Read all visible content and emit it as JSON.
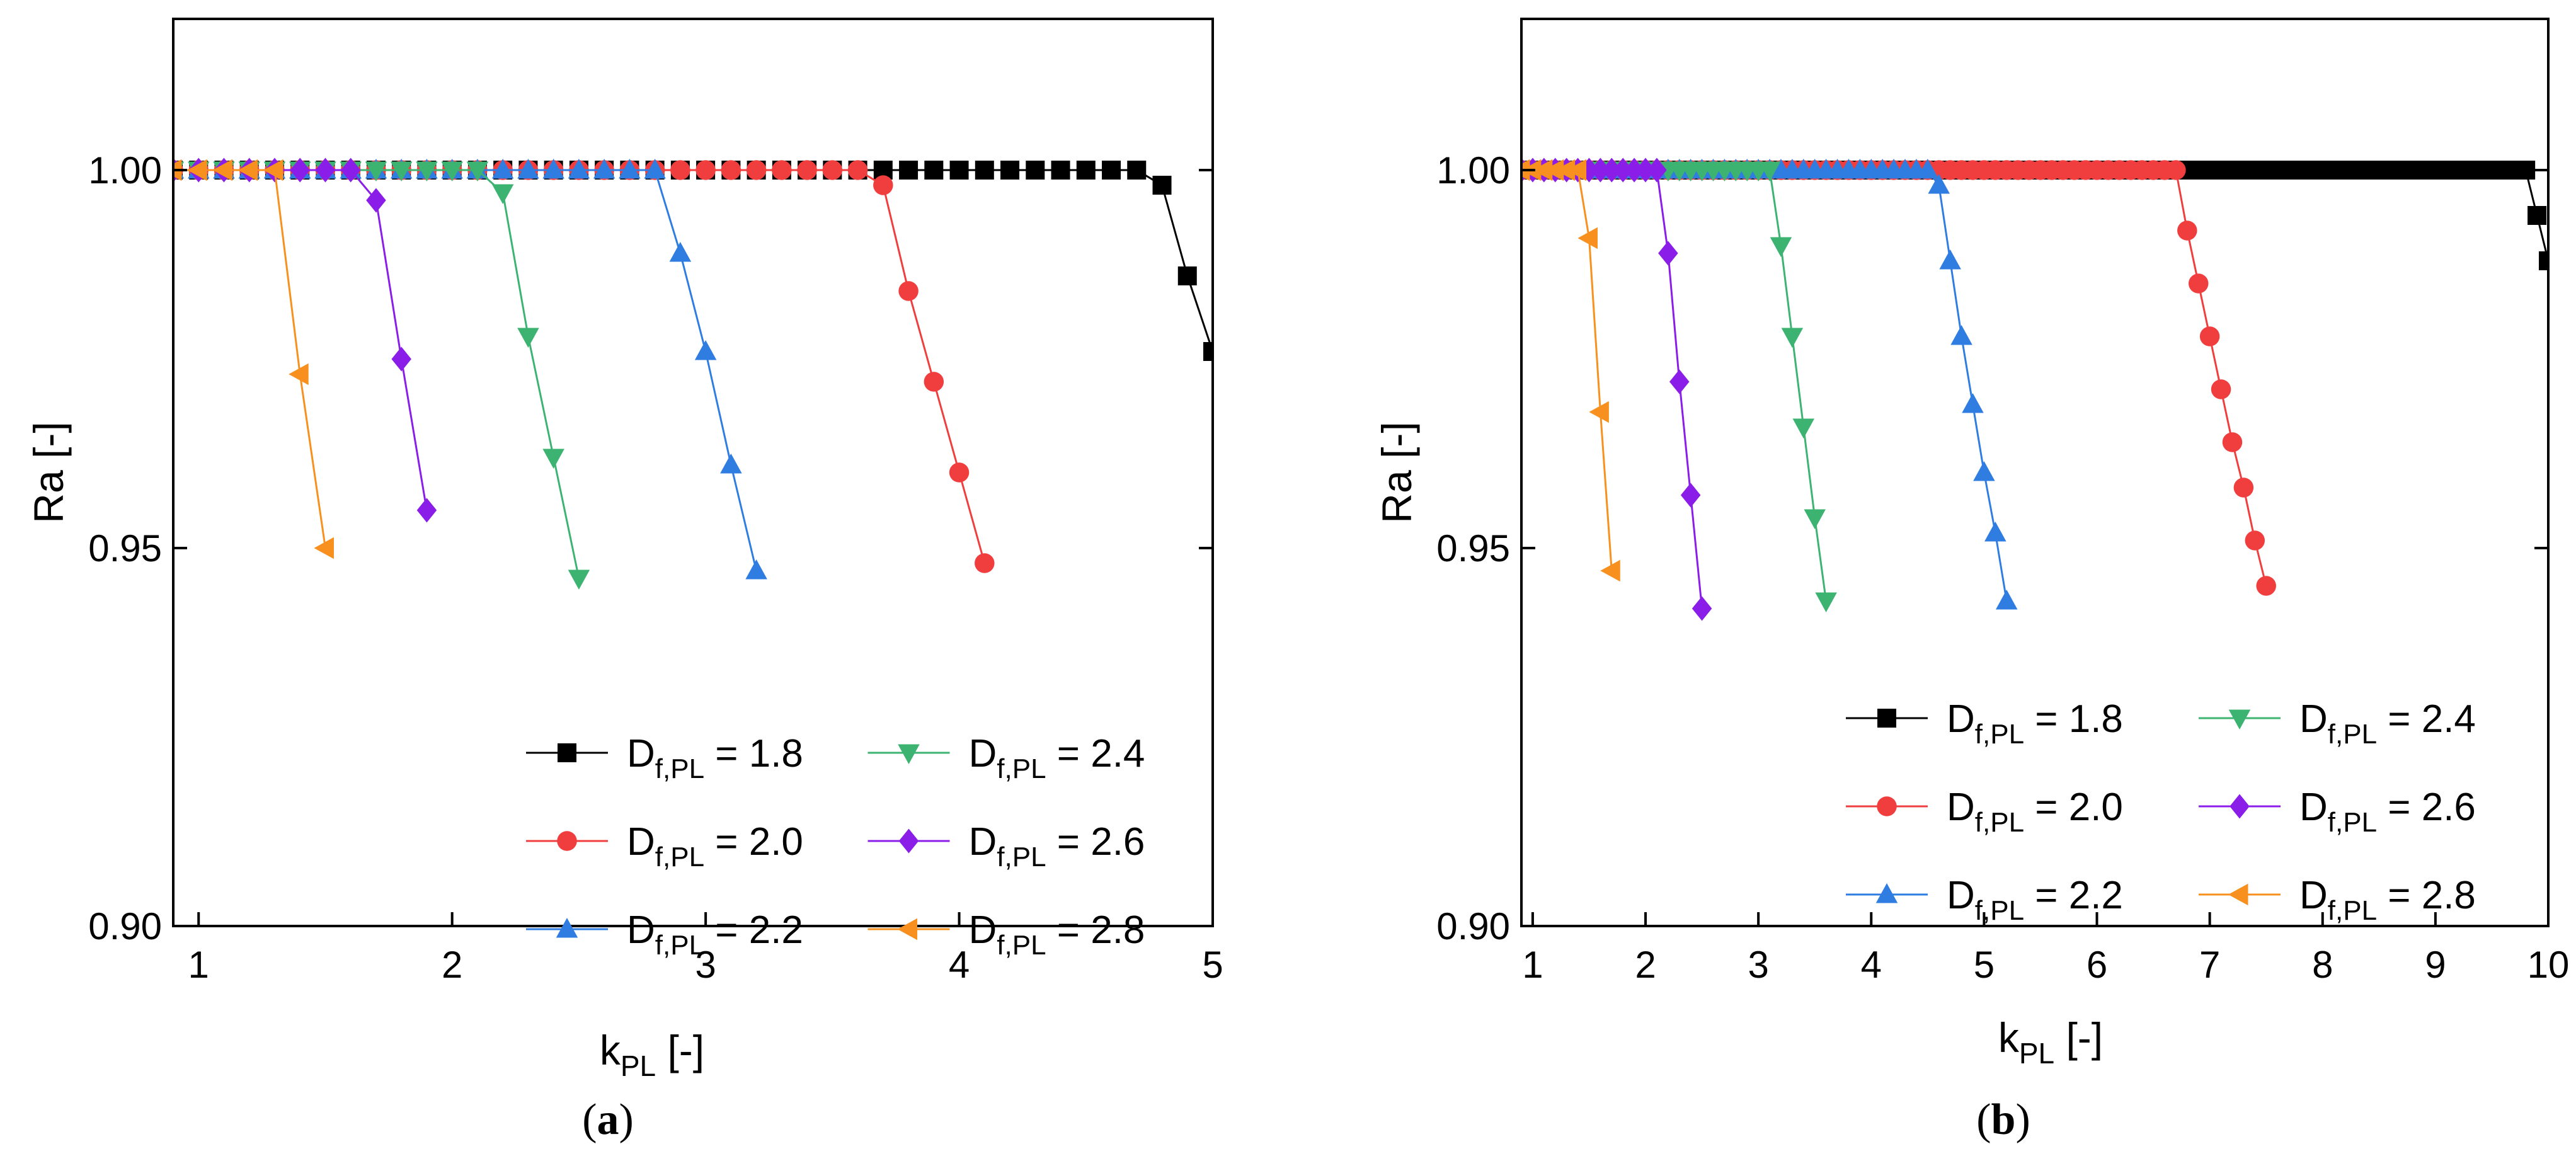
{
  "chart_data": [
    {
      "panel_label": "a",
      "type": "line",
      "xlabel": "k",
      "xlabel_sub": "PL",
      "xlabel_unit": " [-]",
      "ylabel": "Ra [-]",
      "xlim": [
        0.9,
        5.0
      ],
      "ylim": [
        0.9,
        1.02
      ],
      "xticks": [
        "1",
        "2",
        "3",
        "4",
        "5"
      ],
      "yticks": [
        "0.90",
        "0.95",
        "1.00"
      ],
      "grid": false,
      "legend_position": "bottom-right",
      "legend_columns": 2,
      "series": [
        {
          "name_main": "D",
          "name_sub": "f,PL",
          "name_value": " = 1.8",
          "color": "#000000",
          "marker": "square",
          "x": [
            0.9,
            1.0,
            1.1,
            1.2,
            1.3,
            1.4,
            1.5,
            1.6,
            1.7,
            1.8,
            1.9,
            2.0,
            2.1,
            2.2,
            2.3,
            2.4,
            2.5,
            2.6,
            2.7,
            2.8,
            2.9,
            3.0,
            3.1,
            3.2,
            3.3,
            3.4,
            3.5,
            3.6,
            3.7,
            3.8,
            3.9,
            4.0,
            4.1,
            4.2,
            4.3,
            4.4,
            4.5,
            4.6,
            4.7,
            4.8,
            4.9,
            5.0
          ],
          "y": [
            1.0,
            1.0,
            1.0,
            1.0,
            1.0,
            1.0,
            1.0,
            1.0,
            1.0,
            1.0,
            1.0,
            1.0,
            1.0,
            1.0,
            1.0,
            1.0,
            1.0,
            1.0,
            1.0,
            1.0,
            1.0,
            1.0,
            1.0,
            1.0,
            1.0,
            1.0,
            1.0,
            1.0,
            1.0,
            1.0,
            1.0,
            1.0,
            1.0,
            1.0,
            1.0,
            1.0,
            1.0,
            1.0,
            1.0,
            0.998,
            0.986,
            0.976
          ]
        },
        {
          "name_main": "D",
          "name_sub": "f,PL",
          "name_value": " = 2.0",
          "color": "#f03e3e",
          "marker": "circle",
          "x": [
            0.9,
            1.0,
            1.1,
            1.2,
            1.3,
            1.4,
            1.5,
            1.6,
            1.7,
            1.8,
            1.9,
            2.0,
            2.1,
            2.2,
            2.3,
            2.4,
            2.5,
            2.6,
            2.7,
            2.8,
            2.9,
            3.0,
            3.1,
            3.2,
            3.3,
            3.4,
            3.5,
            3.6,
            3.7,
            3.8,
            3.9,
            4.0,
            4.1
          ],
          "y": [
            1.0,
            1.0,
            1.0,
            1.0,
            1.0,
            1.0,
            1.0,
            1.0,
            1.0,
            1.0,
            1.0,
            1.0,
            1.0,
            1.0,
            1.0,
            1.0,
            1.0,
            1.0,
            1.0,
            1.0,
            1.0,
            1.0,
            1.0,
            1.0,
            1.0,
            1.0,
            1.0,
            1.0,
            0.998,
            0.984,
            0.972,
            0.96,
            0.948
          ]
        },
        {
          "name_main": "D",
          "name_sub": "f,PL",
          "name_value": " = 2.2",
          "color": "#2f7de1",
          "marker": "triangle-up",
          "x": [
            0.9,
            1.0,
            1.1,
            1.2,
            1.3,
            1.4,
            1.5,
            1.6,
            1.7,
            1.8,
            1.9,
            2.0,
            2.1,
            2.2,
            2.3,
            2.4,
            2.5,
            2.6,
            2.7,
            2.8,
            2.9,
            3.0,
            3.1,
            3.2
          ],
          "y": [
            1.0,
            1.0,
            1.0,
            1.0,
            1.0,
            1.0,
            1.0,
            1.0,
            1.0,
            1.0,
            1.0,
            1.0,
            1.0,
            1.0,
            1.0,
            1.0,
            1.0,
            1.0,
            1.0,
            1.0,
            0.989,
            0.976,
            0.961,
            0.947
          ]
        },
        {
          "name_main": "D",
          "name_sub": "f,PL",
          "name_value": " = 2.4",
          "color": "#3cb371",
          "marker": "triangle-down",
          "x": [
            0.9,
            1.0,
            1.1,
            1.2,
            1.3,
            1.4,
            1.5,
            1.6,
            1.7,
            1.8,
            1.9,
            2.0,
            2.1,
            2.2,
            2.3,
            2.4,
            2.5
          ],
          "y": [
            1.0,
            1.0,
            1.0,
            1.0,
            1.0,
            1.0,
            1.0,
            1.0,
            1.0,
            1.0,
            1.0,
            1.0,
            1.0,
            0.997,
            0.978,
            0.962,
            0.946
          ]
        },
        {
          "name_main": "D",
          "name_sub": "f,PL",
          "name_value": " = 2.6",
          "color": "#8b1de8",
          "marker": "diamond",
          "x": [
            0.9,
            1.0,
            1.1,
            1.2,
            1.3,
            1.4,
            1.5,
            1.6,
            1.7,
            1.8,
            1.9
          ],
          "y": [
            1.0,
            1.0,
            1.0,
            1.0,
            1.0,
            1.0,
            1.0,
            1.0,
            0.996,
            0.975,
            0.955
          ]
        },
        {
          "name_main": "D",
          "name_sub": "f,PL",
          "name_value": " = 2.8",
          "color": "#f7901e",
          "marker": "triangle-left",
          "x": [
            0.9,
            1.0,
            1.1,
            1.2,
            1.3,
            1.4,
            1.5
          ],
          "y": [
            1.0,
            1.0,
            1.0,
            1.0,
            1.0,
            0.973,
            0.95
          ]
        }
      ]
    },
    {
      "panel_label": "b",
      "type": "line",
      "xlabel": "k",
      "xlabel_sub": "PL",
      "xlabel_unit": " [-]",
      "ylabel": "Ra [-]",
      "xlim": [
        0.9,
        10.0
      ],
      "ylim": [
        0.9,
        1.02
      ],
      "xticks": [
        "1",
        "2",
        "3",
        "4",
        "5",
        "6",
        "7",
        "8",
        "9",
        "10"
      ],
      "yticks": [
        "0.90",
        "0.95",
        "1.00"
      ],
      "grid": false,
      "legend_position": "bottom-right",
      "legend_columns": 2,
      "series": [
        {
          "name_main": "D",
          "name_sub": "f,PL",
          "name_value": " = 1.8",
          "color": "#000000",
          "marker": "square",
          "x": [
            0.9,
            1.0,
            1.1,
            1.2,
            1.3,
            1.4,
            1.5,
            1.6,
            1.7,
            1.8,
            1.9,
            2.0,
            2.1,
            2.2,
            2.3,
            2.4,
            2.5,
            2.6,
            2.7,
            2.8,
            2.9,
            3.0,
            3.1,
            3.2,
            3.3,
            3.4,
            3.5,
            3.6,
            3.7,
            3.8,
            3.9,
            4.0,
            4.1,
            4.2,
            4.3,
            4.4,
            4.5,
            4.6,
            4.7,
            4.8,
            4.9,
            5.0,
            5.1,
            5.2,
            5.3,
            5.4,
            5.5,
            5.6,
            5.7,
            5.8,
            5.9,
            6.0,
            6.1,
            6.2,
            6.3,
            6.4,
            6.5,
            6.6,
            6.7,
            6.8,
            6.9,
            7.0,
            7.1,
            7.2,
            7.3,
            7.4,
            7.5,
            7.6,
            7.7,
            7.8,
            7.9,
            8.0,
            8.1,
            8.2,
            8.3,
            8.4,
            8.5,
            8.6,
            8.7,
            8.8,
            8.9,
            9.0,
            9.1,
            9.2,
            9.3,
            9.4,
            9.5,
            9.6,
            9.7,
            9.8,
            9.9,
            10.0
          ],
          "y": [
            1.0,
            1.0,
            1.0,
            1.0,
            1.0,
            1.0,
            1.0,
            1.0,
            1.0,
            1.0,
            1.0,
            1.0,
            1.0,
            1.0,
            1.0,
            1.0,
            1.0,
            1.0,
            1.0,
            1.0,
            1.0,
            1.0,
            1.0,
            1.0,
            1.0,
            1.0,
            1.0,
            1.0,
            1.0,
            1.0,
            1.0,
            1.0,
            1.0,
            1.0,
            1.0,
            1.0,
            1.0,
            1.0,
            1.0,
            1.0,
            1.0,
            1.0,
            1.0,
            1.0,
            1.0,
            1.0,
            1.0,
            1.0,
            1.0,
            1.0,
            1.0,
            1.0,
            1.0,
            1.0,
            1.0,
            1.0,
            1.0,
            1.0,
            1.0,
            1.0,
            1.0,
            1.0,
            1.0,
            1.0,
            1.0,
            1.0,
            1.0,
            1.0,
            1.0,
            1.0,
            1.0,
            1.0,
            1.0,
            1.0,
            1.0,
            1.0,
            1.0,
            1.0,
            1.0,
            1.0,
            1.0,
            1.0,
            1.0,
            1.0,
            1.0,
            1.0,
            1.0,
            1.0,
            1.0,
            1.0,
            0.994,
            0.988
          ]
        },
        {
          "name_main": "D",
          "name_sub": "f,PL",
          "name_value": " = 2.0",
          "color": "#f03e3e",
          "marker": "circle",
          "x": [
            0.9,
            1.0,
            1.1,
            1.2,
            1.3,
            1.4,
            1.5,
            1.6,
            1.7,
            1.8,
            1.9,
            2.0,
            2.1,
            2.2,
            2.3,
            2.4,
            2.5,
            2.6,
            2.7,
            2.8,
            2.9,
            3.0,
            3.1,
            3.2,
            3.3,
            3.4,
            3.5,
            3.6,
            3.7,
            3.8,
            3.9,
            4.0,
            4.1,
            4.2,
            4.3,
            4.4,
            4.5,
            4.6,
            4.7,
            4.8,
            4.9,
            5.0,
            5.1,
            5.2,
            5.3,
            5.4,
            5.5,
            5.6,
            5.7,
            5.8,
            5.9,
            6.0,
            6.1,
            6.2,
            6.3,
            6.4,
            6.5,
            6.6,
            6.7,
            6.8,
            6.9,
            7.0,
            7.1,
            7.2,
            7.3,
            7.4,
            7.5
          ],
          "y": [
            1.0,
            1.0,
            1.0,
            1.0,
            1.0,
            1.0,
            1.0,
            1.0,
            1.0,
            1.0,
            1.0,
            1.0,
            1.0,
            1.0,
            1.0,
            1.0,
            1.0,
            1.0,
            1.0,
            1.0,
            1.0,
            1.0,
            1.0,
            1.0,
            1.0,
            1.0,
            1.0,
            1.0,
            1.0,
            1.0,
            1.0,
            1.0,
            1.0,
            1.0,
            1.0,
            1.0,
            1.0,
            1.0,
            1.0,
            1.0,
            1.0,
            1.0,
            1.0,
            1.0,
            1.0,
            1.0,
            1.0,
            1.0,
            1.0,
            1.0,
            1.0,
            1.0,
            1.0,
            1.0,
            1.0,
            1.0,
            1.0,
            1.0,
            1.0,
            0.992,
            0.985,
            0.978,
            0.971,
            0.964,
            0.958,
            0.951,
            0.945
          ]
        },
        {
          "name_main": "D",
          "name_sub": "f,PL",
          "name_value": " = 2.2",
          "color": "#2f7de1",
          "marker": "triangle-up",
          "x": [
            0.9,
            1.0,
            1.1,
            1.2,
            1.3,
            1.4,
            1.5,
            1.6,
            1.7,
            1.8,
            1.9,
            2.0,
            2.1,
            2.2,
            2.3,
            2.4,
            2.5,
            2.6,
            2.7,
            2.8,
            2.9,
            3.0,
            3.1,
            3.2,
            3.3,
            3.4,
            3.5,
            3.6,
            3.7,
            3.8,
            3.9,
            4.0,
            4.1,
            4.2,
            4.3,
            4.4,
            4.5,
            4.6,
            4.7,
            4.8,
            4.9,
            5.0,
            5.1,
            5.2
          ],
          "y": [
            1.0,
            1.0,
            1.0,
            1.0,
            1.0,
            1.0,
            1.0,
            1.0,
            1.0,
            1.0,
            1.0,
            1.0,
            1.0,
            1.0,
            1.0,
            1.0,
            1.0,
            1.0,
            1.0,
            1.0,
            1.0,
            1.0,
            1.0,
            1.0,
            1.0,
            1.0,
            1.0,
            1.0,
            1.0,
            1.0,
            1.0,
            1.0,
            1.0,
            1.0,
            1.0,
            1.0,
            1.0,
            0.998,
            0.988,
            0.978,
            0.969,
            0.96,
            0.952,
            0.943
          ]
        },
        {
          "name_main": "D",
          "name_sub": "f,PL",
          "name_value": " = 2.4",
          "color": "#3cb371",
          "marker": "triangle-down",
          "x": [
            0.9,
            1.0,
            1.1,
            1.2,
            1.3,
            1.4,
            1.5,
            1.6,
            1.7,
            1.8,
            1.9,
            2.0,
            2.1,
            2.2,
            2.3,
            2.4,
            2.5,
            2.6,
            2.7,
            2.8,
            2.9,
            3.0,
            3.1,
            3.2,
            3.3,
            3.4,
            3.5,
            3.6
          ],
          "y": [
            1.0,
            1.0,
            1.0,
            1.0,
            1.0,
            1.0,
            1.0,
            1.0,
            1.0,
            1.0,
            1.0,
            1.0,
            1.0,
            1.0,
            1.0,
            1.0,
            1.0,
            1.0,
            1.0,
            1.0,
            1.0,
            1.0,
            1.0,
            0.99,
            0.978,
            0.966,
            0.954,
            0.943
          ]
        },
        {
          "name_main": "D",
          "name_sub": "f,PL",
          "name_value": " = 2.6",
          "color": "#8b1de8",
          "marker": "diamond",
          "x": [
            0.9,
            1.0,
            1.1,
            1.2,
            1.3,
            1.4,
            1.5,
            1.6,
            1.7,
            1.8,
            1.9,
            2.0,
            2.1,
            2.2,
            2.3,
            2.4,
            2.5
          ],
          "y": [
            1.0,
            1.0,
            1.0,
            1.0,
            1.0,
            1.0,
            1.0,
            1.0,
            1.0,
            1.0,
            1.0,
            1.0,
            1.0,
            0.989,
            0.972,
            0.957,
            0.942
          ]
        },
        {
          "name_main": "D",
          "name_sub": "f,PL",
          "name_value": " = 2.8",
          "color": "#f7901e",
          "marker": "triangle-left",
          "x": [
            0.9,
            1.0,
            1.1,
            1.2,
            1.3,
            1.4,
            1.5,
            1.6,
            1.7
          ],
          "y": [
            1.0,
            1.0,
            1.0,
            1.0,
            1.0,
            1.0,
            0.991,
            0.968,
            0.947
          ]
        }
      ]
    }
  ]
}
